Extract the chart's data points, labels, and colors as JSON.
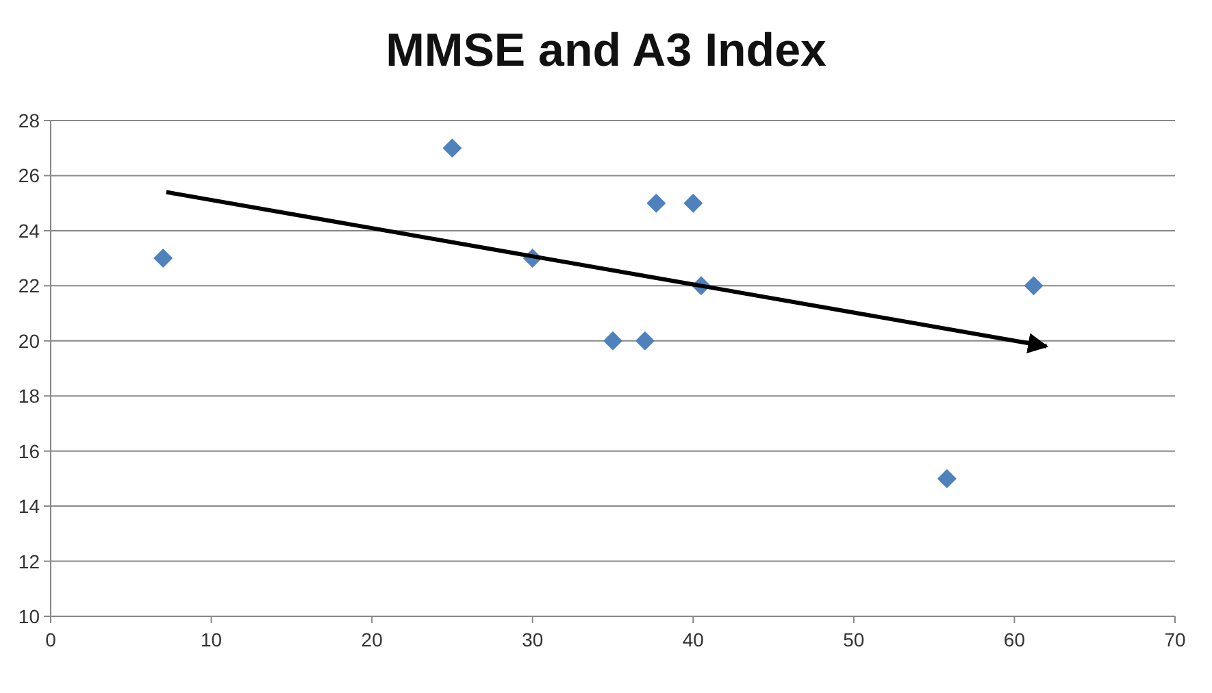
{
  "chart_data": {
    "type": "scatter",
    "title": "MMSE and A3 Index",
    "xlim": [
      0,
      70
    ],
    "xticks": [
      0,
      10,
      20,
      30,
      40,
      50,
      60,
      70
    ],
    "ylim": [
      10,
      28
    ],
    "yticks": [
      10,
      12,
      14,
      16,
      18,
      20,
      22,
      24,
      26,
      28
    ],
    "grid": "y",
    "series": [
      {
        "color": "#4f81bd",
        "marker": "diamond",
        "x": [
          7,
          25,
          30,
          35,
          37,
          37.7,
          40,
          40.5,
          55.8,
          61.2
        ],
        "values": [
          23,
          27,
          23,
          20,
          20,
          25,
          25,
          22,
          15,
          22
        ]
      },
      {
        "type": "line",
        "color": "#000000",
        "marker": "none",
        "line_style": "solid",
        "x": [
          7.2,
          62
        ],
        "values": [
          25.4,
          19.8
        ]
      }
    ]
  }
}
